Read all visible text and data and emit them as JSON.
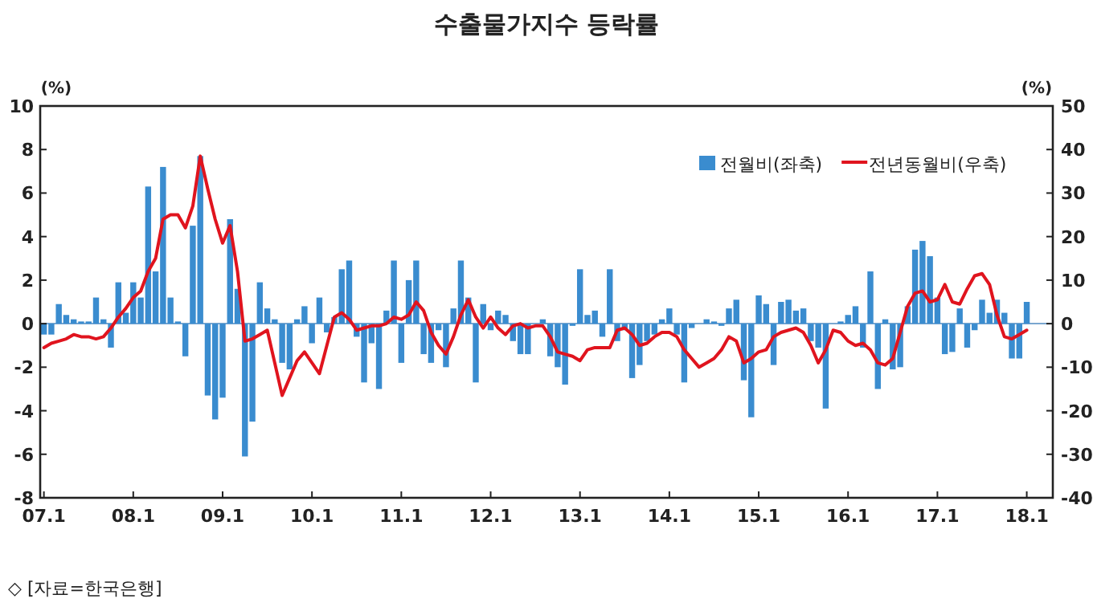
{
  "chart_data": {
    "type": "bar",
    "title": "수출물가지수 등락률",
    "ylabel": "(%)",
    "y2label": "(%)",
    "categories": [
      "07.1",
      null,
      null,
      null,
      null,
      null,
      null,
      null,
      null,
      null,
      null,
      null,
      "08.1",
      null,
      null,
      null,
      null,
      null,
      null,
      null,
      null,
      null,
      null,
      null,
      "09.1",
      null,
      null,
      null,
      null,
      null,
      null,
      null,
      null,
      null,
      null,
      null,
      "10.1",
      null,
      null,
      null,
      null,
      null,
      null,
      null,
      null,
      null,
      null,
      null,
      "11.1",
      null,
      null,
      null,
      null,
      null,
      null,
      null,
      null,
      null,
      null,
      null,
      "12.1",
      null,
      null,
      null,
      null,
      null,
      null,
      null,
      null,
      null,
      null,
      null,
      "13.1",
      null,
      null,
      null,
      null,
      null,
      null,
      null,
      null,
      null,
      null,
      null,
      "14.1",
      null,
      null,
      null,
      null,
      null,
      null,
      null,
      null,
      null,
      null,
      null,
      "15.1",
      null,
      null,
      null,
      null,
      null,
      null,
      null,
      null,
      null,
      null,
      null,
      "16.1",
      null,
      null,
      null,
      null,
      null,
      null,
      null,
      null,
      null,
      null,
      null,
      "17.1",
      null,
      null,
      null,
      null,
      null,
      null,
      null,
      null,
      null,
      null,
      null,
      "18.1"
    ],
    "series": [
      {
        "name": "전월비(좌축)",
        "color": "#3a8ccf",
        "values": [
          -0.5,
          -0.5,
          0.9,
          0.4,
          0.2,
          0.1,
          0.1,
          1.2,
          0.2,
          -1.1,
          1.9,
          0.5,
          1.9,
          1.2,
          6.3,
          2.4,
          7.2,
          1.2,
          0.1,
          -1.5,
          4.5,
          7.7,
          -3.3,
          -4.4,
          -3.4,
          4.8,
          1.6,
          -6.1,
          -4.5,
          1.9,
          0.7,
          0.2,
          -1.8,
          -2.1,
          0.2,
          0.8,
          -0.9,
          1.2,
          -0.4,
          0.3,
          2.5,
          2.9,
          -0.6,
          -2.7,
          -0.9,
          -3.0,
          0.6,
          2.9,
          -1.8,
          2.0,
          2.9,
          -1.4,
          -1.8,
          -0.3,
          -2.0,
          0.7,
          2.9,
          1.2,
          -2.7,
          0.9,
          -0.3,
          0.6,
          0.4,
          -0.8,
          -1.4,
          -1.4,
          0,
          0.2,
          -1.5,
          -2.0,
          -2.8,
          -0.1,
          2.5,
          0.4,
          0.6,
          -0.6,
          2.5,
          -0.8,
          -0.3,
          -2.5,
          -1.9,
          -0.8,
          -0.5,
          0.2,
          0.7,
          -0.5,
          -2.7,
          -0.2,
          0,
          0.2,
          0.1,
          -0.1,
          0.7,
          1.1,
          -2.6,
          -4.3,
          1.3,
          0.9,
          -1.9,
          1.0,
          1.1,
          0.6,
          0.7,
          -0.8,
          -1.1,
          -3.9,
          0,
          0.1,
          0.4,
          0.8,
          -1.1,
          2.4,
          -3.0,
          0.2,
          -2.1,
          -2.0,
          0.8,
          3.4,
          3.8,
          3.1,
          1.2,
          -1.4,
          -1.3,
          0.7,
          -1.1,
          -0.3,
          1.1,
          0.5,
          1.1,
          0.5,
          -1.6,
          -1.6,
          1.0
        ]
      },
      {
        "name": "전년동월비(우축)",
        "type": "line",
        "axis": "y2",
        "color": "#e0141e",
        "values": [
          -5.5,
          -4.5,
          -4,
          -3.5,
          -2.5,
          -3,
          -3,
          -3.5,
          -3,
          -1,
          1.5,
          3.5,
          6,
          7.5,
          12,
          15,
          24,
          25,
          25,
          22,
          27,
          38.5,
          31,
          24,
          18.5,
          22.5,
          12,
          -4,
          -3.5,
          -2.5,
          -1.5,
          -9,
          -16.5,
          -12.5,
          -8.5,
          -6.5,
          -9,
          -11.5,
          -5,
          1.5,
          2.5,
          1,
          -1.5,
          -1,
          -0.5,
          -0.5,
          0,
          1.5,
          1,
          2,
          5,
          3,
          -2,
          -5,
          -7,
          -3,
          2,
          5.5,
          1.5,
          -1,
          1.5,
          -1,
          -2.5,
          -0.5,
          0,
          -1,
          -0.5,
          -0.5,
          -3,
          -6.5,
          -7,
          -7.5,
          -8.5,
          -6,
          -5.5,
          -5.5,
          -5.5,
          -1.5,
          -1,
          -2.5,
          -5,
          -4.5,
          -3,
          -2,
          -2,
          -3,
          -6,
          -8,
          -10,
          -9,
          -8,
          -6,
          -3,
          -4,
          -9,
          -8,
          -6.5,
          -6,
          -3,
          -2,
          -1.5,
          -1,
          -2,
          -5,
          -9,
          -6,
          -1.5,
          -2,
          -4,
          -5,
          -4.5,
          -6,
          -9,
          -9.5,
          -8,
          -2,
          4,
          7,
          7.5,
          5,
          5.5,
          9,
          5,
          4.5,
          8,
          11,
          11.5,
          9,
          2,
          -3,
          -3.5,
          -2.5,
          -1.5
        ]
      }
    ],
    "ylim": [
      -8,
      10
    ],
    "yticks": [
      -8,
      -6,
      -4,
      -2,
      0,
      2,
      4,
      6,
      8,
      10
    ],
    "y2lim": [
      -40,
      50
    ],
    "y2ticks": [
      -40,
      -30,
      -20,
      -10,
      0,
      10,
      20,
      30,
      40,
      50
    ],
    "legend": "top right",
    "grid": false,
    "ref_lines": [
      {
        "axis": "y",
        "value": 0,
        "color": "#7aa7d0"
      }
    ],
    "annotations": [
      "◇ [자료=한국은행]"
    ]
  }
}
